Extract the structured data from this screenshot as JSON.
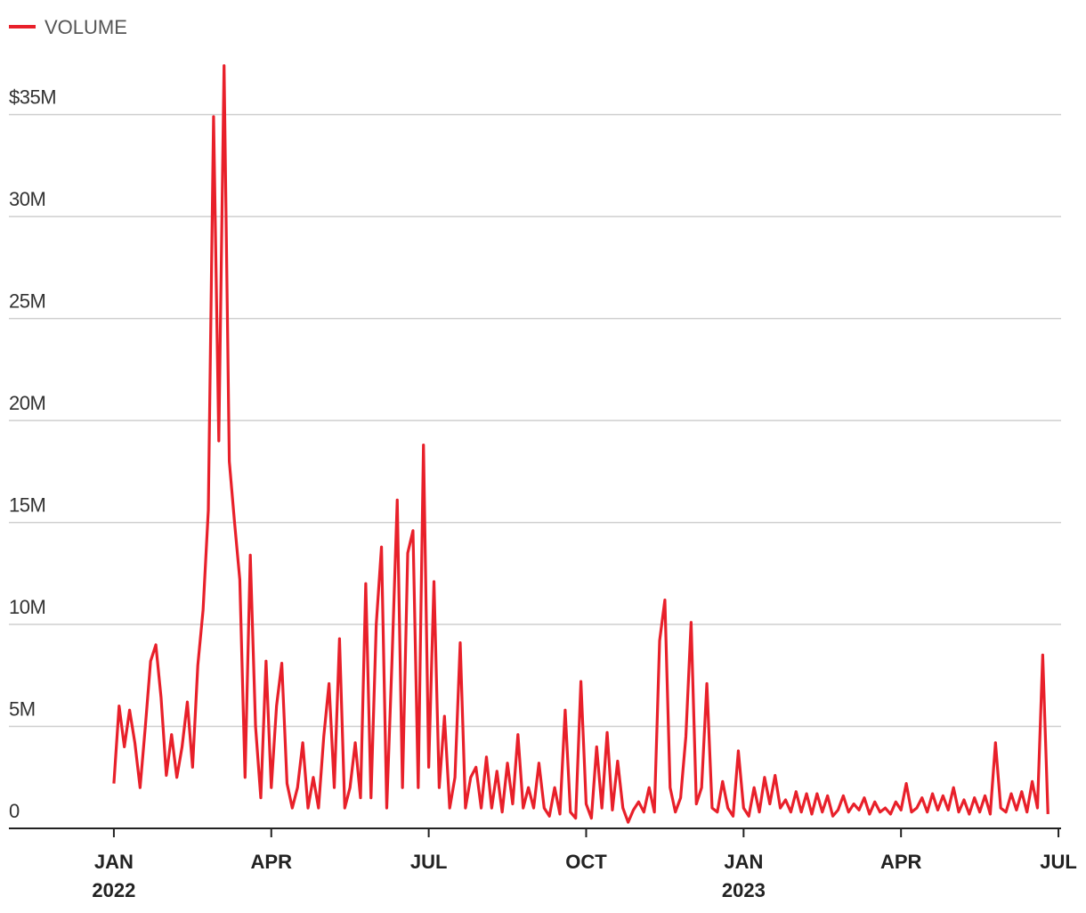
{
  "chart_data": {
    "type": "line",
    "legend": "top-left",
    "grid": true,
    "xlim": [
      -2.0,
      18.05
    ],
    "xticks": [
      {
        "value": 0,
        "label": "JAN\n2022"
      },
      {
        "value": 3,
        "label": "APR"
      },
      {
        "value": 6,
        "label": "JUL"
      },
      {
        "value": 9,
        "label": "OCT"
      },
      {
        "value": 12,
        "label": "JAN\n2023"
      },
      {
        "value": 15,
        "label": "APR"
      },
      {
        "value": 18,
        "label": "JUL"
      }
    ],
    "ylim": [
      0,
      38
    ],
    "yticks": [
      0,
      {
        "value": 5,
        "label": "5M"
      },
      {
        "value": 10,
        "label": "10M"
      },
      {
        "value": 15,
        "label": "15M"
      },
      {
        "value": 20,
        "label": "20M"
      },
      {
        "value": 25,
        "label": "25M"
      },
      {
        "value": 30,
        "label": "30M"
      },
      {
        "value": 35,
        "label": "$35M"
      }
    ],
    "x": [
      0,
      0.1,
      0.2,
      0.3,
      0.4,
      0.5,
      0.6,
      0.7,
      0.8,
      0.9,
      1,
      1.1,
      1.2,
      1.3,
      1.4,
      1.5,
      1.6,
      1.7,
      1.8,
      1.9,
      2,
      2.1,
      2.2,
      2.3,
      2.4,
      2.5,
      2.6,
      2.7,
      2.8,
      2.9,
      3,
      3.1,
      3.2,
      3.3,
      3.4,
      3.5,
      3.6,
      3.7,
      3.8,
      3.9,
      4,
      4.1,
      4.2,
      4.3,
      4.4,
      4.5,
      4.6,
      4.7,
      4.8,
      4.9,
      5,
      5.1,
      5.2,
      5.3,
      5.4,
      5.5,
      5.6,
      5.7,
      5.8,
      5.9,
      6,
      6.1,
      6.2,
      6.3,
      6.4,
      6.5,
      6.6,
      6.7,
      6.8,
      6.9,
      7,
      7.1,
      7.2,
      7.3,
      7.4,
      7.5,
      7.6,
      7.7,
      7.8,
      7.9,
      8,
      8.1,
      8.2,
      8.3,
      8.4,
      8.5,
      8.6,
      8.7,
      8.8,
      8.9,
      9,
      9.1,
      9.2,
      9.3,
      9.4,
      9.5,
      9.6,
      9.7,
      9.8,
      9.9,
      10,
      10.1,
      10.2,
      10.3,
      10.4,
      10.5,
      10.6,
      10.7,
      10.8,
      10.9,
      11,
      11.1,
      11.2,
      11.3,
      11.4,
      11.5,
      11.6,
      11.7,
      11.8,
      11.9,
      12,
      12.1,
      12.2,
      12.3,
      12.4,
      12.5,
      12.6,
      12.7,
      12.8,
      12.9,
      13,
      13.1,
      13.2,
      13.3,
      13.4,
      13.5,
      13.6,
      13.7,
      13.8,
      13.9,
      14,
      14.1,
      14.2,
      14.3,
      14.4,
      14.5,
      14.6,
      14.7,
      14.8,
      14.9,
      15,
      15.1,
      15.2,
      15.3,
      15.4,
      15.5,
      15.6,
      15.7,
      15.8,
      15.9,
      16,
      16.1,
      16.2,
      16.3,
      16.4,
      16.5,
      16.6,
      16.7,
      16.8,
      16.9,
      17,
      17.1,
      17.2,
      17.3,
      17.4,
      17.5,
      17.6,
      17.7,
      17.8
    ],
    "series": [
      {
        "name": "VOLUME",
        "color": "#e8202a",
        "values": [
          2.2,
          6.0,
          4.0,
          5.8,
          4.2,
          2.0,
          5.0,
          8.2,
          9.0,
          6.4,
          2.6,
          4.6,
          2.5,
          4.0,
          6.2,
          3.0,
          8.0,
          10.7,
          15.6,
          34.9,
          19.0,
          37.4,
          18.0,
          15.0,
          12.2,
          2.5,
          13.4,
          5.0,
          1.5,
          8.2,
          2.0,
          6.0,
          8.1,
          2.2,
          1.0,
          2.0,
          4.2,
          1.0,
          2.5,
          1.0,
          4.5,
          7.1,
          2.0,
          9.3,
          1.0,
          2.0,
          4.2,
          1.5,
          12.0,
          1.5,
          10.0,
          13.8,
          1.0,
          8.2,
          16.1,
          2.0,
          13.5,
          14.6,
          2.0,
          18.8,
          3.0,
          12.1,
          2.0,
          5.5,
          1.0,
          2.5,
          9.1,
          1.0,
          2.5,
          3.0,
          1.0,
          3.5,
          1.0,
          2.8,
          0.8,
          3.2,
          1.2,
          4.6,
          1.0,
          2.0,
          1.0,
          3.2,
          1.0,
          0.6,
          2.0,
          0.7,
          5.8,
          0.8,
          0.5,
          7.2,
          1.2,
          0.5,
          4.0,
          1.0,
          4.7,
          0.9,
          3.3,
          1.0,
          0.3,
          0.9,
          1.3,
          0.8,
          2.0,
          0.8,
          9.2,
          11.2,
          2.0,
          0.8,
          1.5,
          4.5,
          10.1,
          1.2,
          2.0,
          7.1,
          1.0,
          0.8,
          2.3,
          1.0,
          0.6,
          3.8,
          1.0,
          0.6,
          2.0,
          0.8,
          2.5,
          1.2,
          2.6,
          1.0,
          1.4,
          0.8,
          1.8,
          0.8,
          1.7,
          0.7,
          1.7,
          0.8,
          1.6,
          0.6,
          0.9,
          1.6,
          0.8,
          1.2,
          0.9,
          1.5,
          0.7,
          1.3,
          0.8,
          1.0,
          0.7,
          1.3,
          0.9,
          2.2,
          0.8,
          1.0,
          1.5,
          0.8,
          1.7,
          0.9,
          1.6,
          0.9,
          2.0,
          0.8,
          1.4,
          0.7,
          1.5,
          0.8,
          1.6,
          0.7,
          4.2,
          1.0,
          0.8,
          1.7,
          0.9,
          1.8,
          0.8,
          2.3,
          1.0,
          8.5,
          0.7
        ]
      }
    ]
  }
}
